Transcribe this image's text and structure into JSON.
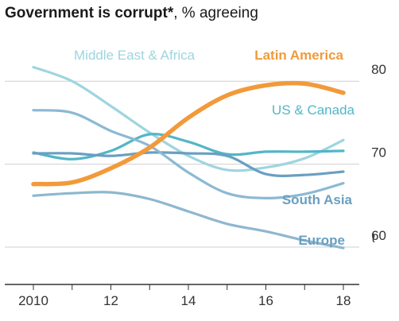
{
  "chart_data": {
    "type": "line",
    "title": "Government is corrupt*",
    "subtitle": ", % agreeing",
    "xlabel": "",
    "ylabel": "",
    "x": [
      2010,
      2011,
      2012,
      2013,
      2014,
      2015,
      2016,
      2017,
      2018
    ],
    "x_ticks": [
      2010,
      2012,
      2014,
      2016,
      2018
    ],
    "x_tick_labels": [
      "2010",
      "12",
      "14",
      "16",
      "18"
    ],
    "y_ticks": [
      60,
      70,
      80
    ],
    "ylim": [
      55.5,
      85
    ],
    "xlim": [
      2010,
      2018
    ],
    "grid": true,
    "axis_break_symbol": "≀",
    "series": [
      {
        "name": "Middle East & Africa",
        "color": "#9ed5e0",
        "values": [
          81.7,
          80.0,
          77.0,
          73.8,
          71.0,
          69.3,
          69.6,
          70.7,
          72.9
        ]
      },
      {
        "name": "Latin America",
        "color": "#f29a3a",
        "values": [
          67.6,
          67.8,
          69.5,
          72.0,
          75.6,
          78.3,
          79.5,
          79.7,
          78.6
        ]
      },
      {
        "name": "US & Canada",
        "color": "#52b6c7",
        "values": [
          71.4,
          70.6,
          71.6,
          73.6,
          72.7,
          71.2,
          71.5,
          71.5,
          71.6
        ]
      },
      {
        "name": "South Asia",
        "color": "#6a9fc0",
        "values": [
          71.3,
          71.3,
          71.0,
          71.4,
          71.3,
          71.0,
          68.8,
          68.7,
          69.1
        ]
      },
      {
        "name": "",
        "color": "#8bb9d3",
        "values": [
          76.5,
          76.2,
          74.0,
          72.2,
          69.0,
          66.5,
          65.9,
          66.4,
          67.7
        ]
      },
      {
        "name": "Europe",
        "color": "#8eb7cf",
        "values": [
          66.2,
          66.5,
          66.6,
          65.8,
          64.3,
          62.8,
          61.9,
          60.8,
          59.9
        ]
      }
    ],
    "labels": [
      {
        "text": "Middle East & Africa",
        "color": "#9ed5e0"
      },
      {
        "text": "Latin America",
        "color": "#f29a3a"
      },
      {
        "text": "US & Canada",
        "color": "#52b6c7"
      },
      {
        "text": "South Asia",
        "color": "#6a9fc0"
      },
      {
        "text": "Europe",
        "color": "#6a9fc0"
      }
    ],
    "colors": {
      "title": "#1a1a1a",
      "grid": "#d0d0d0",
      "axis": "#333333",
      "tick_text": "#333333"
    }
  }
}
